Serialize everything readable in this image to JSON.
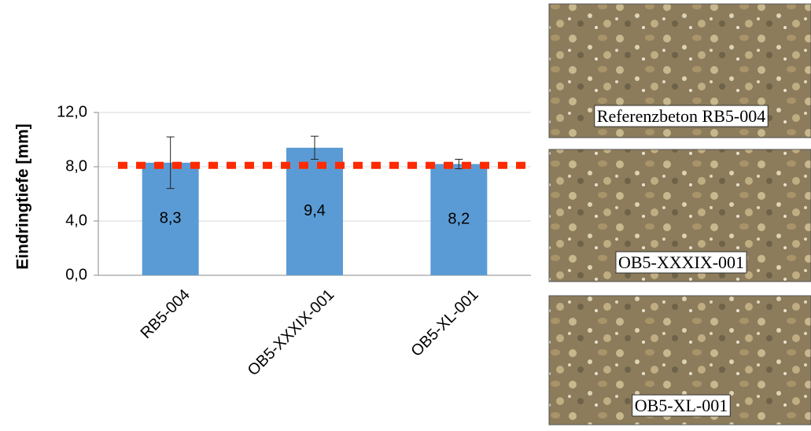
{
  "chart_data": {
    "type": "bar",
    "y_label": "Eindringtiefe [mm]",
    "categories": [
      "RB5-004",
      "OB5-XXXIX-001",
      "OB5-XL-001"
    ],
    "values": [
      8.3,
      9.4,
      8.2
    ],
    "value_labels": [
      "8,3",
      "9,4",
      "8,2"
    ],
    "errors": [
      1.9,
      0.85,
      0.35
    ],
    "color": "#5b9bd5",
    "ylim": [
      0,
      12
    ],
    "yticks": [
      {
        "value": 0,
        "label": "0,0"
      },
      {
        "value": 4,
        "label": "4,0"
      },
      {
        "value": 8,
        "label": "8,0"
      },
      {
        "value": 12,
        "label": "12,0"
      }
    ],
    "grid": true,
    "reference_line": {
      "value": 8.1,
      "color": "#ff2a00"
    }
  },
  "photos": [
    {
      "caption": "Referenzbeton RB5-004"
    },
    {
      "caption": "OB5-XXXIX-001"
    },
    {
      "caption": "OB5-XL-001"
    }
  ]
}
